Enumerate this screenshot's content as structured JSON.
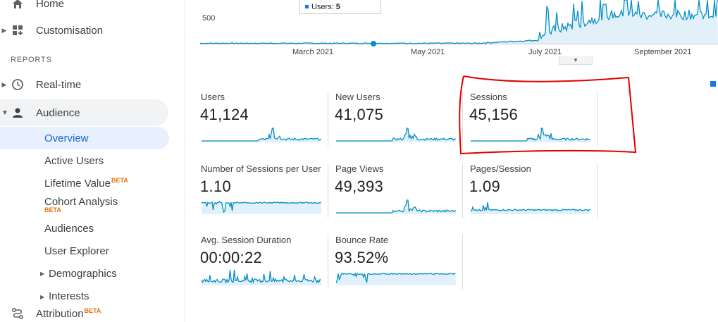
{
  "sidebar": {
    "home": "Home",
    "customisation": "Customisation",
    "reports_heading": "REPORTS",
    "realtime": "Real-time",
    "audience": "Audience",
    "audience_children": {
      "overview": "Overview",
      "active_users": "Active Users",
      "lifetime_value": "Lifetime Value",
      "lifetime_value_badge": "BETA",
      "cohort_analysis": "Cohort Analysis",
      "cohort_analysis_badge": "BETA",
      "audiences": "Audiences",
      "user_explorer": "User Explorer",
      "demographics": "Demographics",
      "interests": "Interests"
    },
    "attribution": "Attribution",
    "attribution_badge": "BETA"
  },
  "timeline": {
    "y_tick": "500",
    "months": [
      "March 2021",
      "May 2021",
      "July 2021",
      "September 2021"
    ],
    "tooltip_label": "Users:",
    "tooltip_value": "5"
  },
  "metrics": [
    {
      "label": "Users",
      "value": "41,124"
    },
    {
      "label": "New Users",
      "value": "41,075"
    },
    {
      "label": "Sessions",
      "value": "45,156"
    },
    {
      "label": "Number of Sessions per User",
      "value": "1.10"
    },
    {
      "label": "Page Views",
      "value": "49,393"
    },
    {
      "label": "Pages/Session",
      "value": "1.09"
    },
    {
      "label": "Avg. Session Duration",
      "value": "00:00:22"
    },
    {
      "label": "Bounce Rate",
      "value": "93.52%"
    }
  ],
  "colors": {
    "accent": "#1a73e8",
    "line": "#058dc7",
    "fill": "#e1f0f9",
    "highlight": "#e00000",
    "selected_bg": "#e8f0fe",
    "active_bg": "#f1f3f4",
    "selected_text": "#1967d2",
    "beta": "#e8710a"
  }
}
